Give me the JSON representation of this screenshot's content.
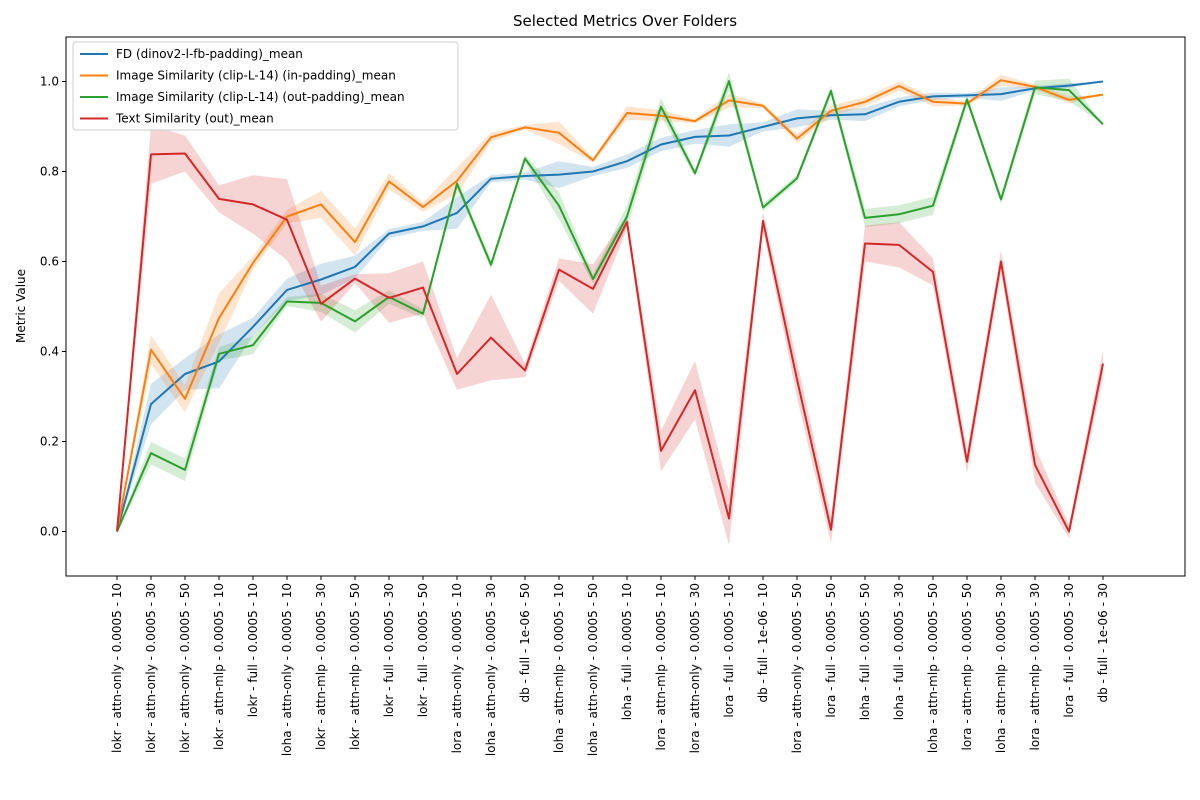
{
  "chart_data": {
    "type": "line",
    "title": "Selected Metrics Over Folders",
    "xlabel": "",
    "ylabel": "Metric Value",
    "ylim": [
      -0.1,
      1.1
    ],
    "yticks": [
      0.0,
      0.2,
      0.4,
      0.6,
      0.8,
      1.0
    ],
    "ytick_labels": [
      "0.0",
      "0.2",
      "0.4",
      "0.6",
      "0.8",
      "1.0"
    ],
    "grid": false,
    "legend_position": "top-left",
    "categories": [
      "lokr - attn-only - 0.0005 - 10",
      "lokr - attn-only - 0.0005 - 30",
      "lokr - attn-only - 0.0005 - 50",
      "lokr - attn-mlp - 0.0005 - 10",
      "lokr - full - 0.0005 - 10",
      "loha - attn-only - 0.0005 - 10",
      "lokr - attn-mlp - 0.0005 - 30",
      "lokr - attn-mlp - 0.0005 - 50",
      "lokr - full - 0.0005 - 30",
      "lokr - full - 0.0005 - 50",
      "lora - attn-only - 0.0005 - 10",
      "loha - attn-only - 0.0005 - 30",
      "db - full - 1e-06 - 50",
      "loha - attn-mlp - 0.0005 - 10",
      "loha - attn-only - 0.0005 - 50",
      "loha - full - 0.0005 - 10",
      "lora - attn-mlp - 0.0005 - 10",
      "lora - attn-only - 0.0005 - 30",
      "lora - full - 0.0005 - 10",
      "db - full - 1e-06 - 10",
      "lora - attn-only - 0.0005 - 50",
      "lora - full - 0.0005 - 50",
      "loha - full - 0.0005 - 50",
      "loha - full - 0.0005 - 30",
      "loha - attn-mlp - 0.0005 - 50",
      "lora - attn-mlp - 0.0005 - 50",
      "loha - attn-mlp - 0.0005 - 30",
      "lora - attn-mlp - 0.0005 - 30",
      "lora - full - 0.0005 - 30",
      "db - full - 1e-06 - 30"
    ],
    "series": [
      {
        "name": "FD (dinov2-l-fb-padding)_mean",
        "color": "#1f77b4",
        "values": [
          0.0,
          0.283,
          0.35,
          0.378,
          0.455,
          0.537,
          0.56,
          0.588,
          0.662,
          0.678,
          0.708,
          0.784,
          0.79,
          0.793,
          0.8,
          0.823,
          0.86,
          0.877,
          0.88,
          0.899,
          0.918,
          0.925,
          0.927,
          0.955,
          0.967,
          0.969,
          0.972,
          0.985,
          0.991,
          1.0
        ],
        "band": [
          0.0,
          0.045,
          0.035,
          0.06,
          0.02,
          0.025,
          0.035,
          0.025,
          0.01,
          0.01,
          0.035,
          0.008,
          0.008,
          0.03,
          0.01,
          0.015,
          0.015,
          0.015,
          0.025,
          0.01,
          0.02,
          0.01,
          0.015,
          0.01,
          0.008,
          0.005,
          0.015,
          0.005,
          0.005,
          0.0
        ]
      },
      {
        "name": "Image Similarity (clip-L-14) (in-padding)_mean",
        "color": "#ff7f0e",
        "values": [
          0.0,
          0.404,
          0.295,
          0.474,
          0.597,
          0.7,
          0.727,
          0.643,
          0.778,
          0.721,
          0.779,
          0.876,
          0.898,
          0.886,
          0.825,
          0.93,
          0.924,
          0.912,
          0.958,
          0.946,
          0.873,
          0.935,
          0.955,
          0.99,
          0.955,
          0.951,
          1.003,
          0.988,
          0.959,
          0.971
        ],
        "band": [
          0.0,
          0.032,
          0.03,
          0.055,
          0.015,
          0.015,
          0.03,
          0.03,
          0.018,
          0.01,
          0.03,
          0.01,
          0.005,
          0.025,
          0.005,
          0.015,
          0.012,
          0.005,
          0.015,
          0.005,
          0.01,
          0.012,
          0.01,
          0.01,
          0.01,
          0.005,
          0.012,
          0.005,
          0.008,
          0.0
        ]
      },
      {
        "name": "Image Similarity (clip-L-14) (out-padding)_mean",
        "color": "#2ca02c",
        "values": [
          0.0,
          0.174,
          0.137,
          0.395,
          0.414,
          0.511,
          0.508,
          0.467,
          0.521,
          0.484,
          0.773,
          0.593,
          0.829,
          0.724,
          0.561,
          0.7,
          0.944,
          0.796,
          1.001,
          0.72,
          0.785,
          0.979,
          0.697,
          0.705,
          0.724,
          0.96,
          0.738,
          0.987,
          0.981,
          0.905
        ],
        "band": [
          0.0,
          0.025,
          0.025,
          0.015,
          0.02,
          0.01,
          0.02,
          0.025,
          0.015,
          0.01,
          0.01,
          0.01,
          0.008,
          0.03,
          0.01,
          0.025,
          0.02,
          0.008,
          0.02,
          0.008,
          0.008,
          0.01,
          0.02,
          0.02,
          0.02,
          0.01,
          0.01,
          0.015,
          0.025,
          0.0
        ]
      },
      {
        "name": "Text Similarity (out)_mean",
        "color": "#d62728",
        "values": [
          0.0,
          0.838,
          0.84,
          0.739,
          0.727,
          0.693,
          0.506,
          0.562,
          0.519,
          0.542,
          0.35,
          0.431,
          0.358,
          0.582,
          0.539,
          0.688,
          0.179,
          0.314,
          0.029,
          0.69,
          0.338,
          0.004,
          0.64,
          0.637,
          0.577,
          0.155,
          0.6,
          0.148,
          0.0,
          0.373
        ],
        "band": [
          0.0,
          0.065,
          0.04,
          0.03,
          0.065,
          0.09,
          0.04,
          0.01,
          0.055,
          0.058,
          0.035,
          0.095,
          0.015,
          0.025,
          0.055,
          0.015,
          0.045,
          0.065,
          0.06,
          0.02,
          0.04,
          0.03,
          0.04,
          0.05,
          0.03,
          0.025,
          0.025,
          0.04,
          0.015,
          0.03
        ]
      }
    ]
  }
}
